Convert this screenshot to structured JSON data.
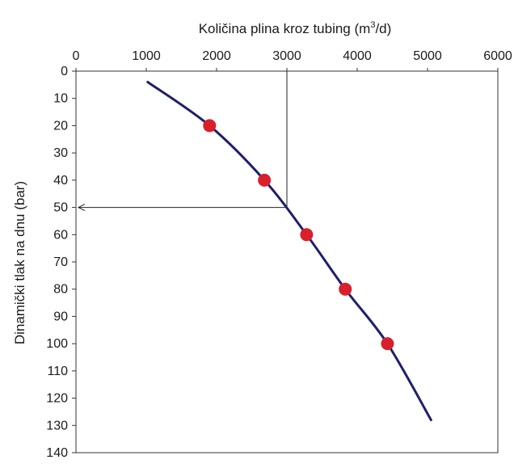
{
  "chart_data": {
    "type": "line",
    "x_axis": {
      "label_prefix": "Količina plina kroz tubing (m",
      "label_sup": "3",
      "label_suffix": "/d)",
      "position": "top",
      "min": 0,
      "max": 6000,
      "ticks": [
        "0",
        "1000",
        "2000",
        "3000",
        "4000",
        "5000",
        "6000"
      ]
    },
    "y_axis": {
      "label": "Dinamički tlak na dnu (bar)",
      "inverted": true,
      "min": 0,
      "max": 140,
      "ticks": [
        "0",
        "10",
        "20",
        "30",
        "40",
        "50",
        "60",
        "70",
        "80",
        "90",
        "100",
        "110",
        "120",
        "130",
        "140"
      ]
    },
    "grid": false,
    "series": [
      {
        "color": "#1f1f6e",
        "curve": [
          {
            "x": 1020,
            "y": 4
          },
          {
            "x": 1900,
            "y": 20
          },
          {
            "x": 2680,
            "y": 40
          },
          {
            "x": 3280,
            "y": 60
          },
          {
            "x": 3830,
            "y": 80
          },
          {
            "x": 4430,
            "y": 100
          },
          {
            "x": 5050,
            "y": 128
          }
        ],
        "points_color": "#d91f2b",
        "points": [
          {
            "x": 1900,
            "y": 20
          },
          {
            "x": 2680,
            "y": 40
          },
          {
            "x": 3280,
            "y": 60
          },
          {
            "x": 3830,
            "y": 80
          },
          {
            "x": 4430,
            "y": 100
          }
        ]
      }
    ],
    "annotation": {
      "x": 3000,
      "y": 50
    }
  }
}
